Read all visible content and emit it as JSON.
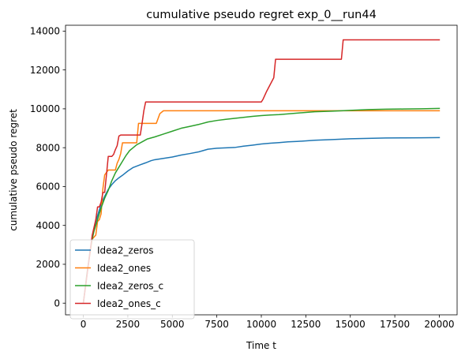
{
  "chart_data": {
    "type": "line",
    "title": "cumulative pseudo regret exp_0__run44",
    "xlabel": "Time t",
    "ylabel": "cumulative pseudo regret",
    "xlim": [
      -1000,
      21000
    ],
    "ylim": [
      -600,
      14300
    ],
    "xticks": [
      0,
      2500,
      5000,
      7500,
      10000,
      12500,
      15000,
      17500,
      20000
    ],
    "yticks": [
      0,
      2000,
      4000,
      6000,
      8000,
      10000,
      12000,
      14000
    ],
    "grid": false,
    "legend_position": "lower left",
    "series": [
      {
        "name": "Idea2_zeros",
        "color": "#1f77b4",
        "x": [
          0,
          100,
          200,
          300,
          400,
          500,
          600,
          700,
          800,
          900,
          1000,
          1200,
          1400,
          1600,
          1800,
          2000,
          2200,
          2500,
          2800,
          3000,
          3200,
          3500,
          3800,
          4000,
          4500,
          5000,
          5500,
          6000,
          6500,
          7000,
          7500,
          8000,
          8500,
          9000,
          9500,
          10000,
          10500,
          11000,
          11500,
          12000,
          13000,
          14000,
          15000,
          16000,
          17000,
          18000,
          19000,
          20000
        ],
        "y": [
          0,
          700,
          1400,
          2100,
          2800,
          3400,
          3800,
          4200,
          4500,
          4800,
          5100,
          5500,
          5850,
          6100,
          6300,
          6450,
          6580,
          6800,
          6980,
          7050,
          7120,
          7220,
          7330,
          7380,
          7450,
          7520,
          7620,
          7700,
          7790,
          7920,
          7970,
          7990,
          8010,
          8080,
          8130,
          8190,
          8230,
          8260,
          8300,
          8320,
          8380,
          8420,
          8460,
          8480,
          8500,
          8505,
          8510,
          8520
        ]
      },
      {
        "name": "Idea2_ones",
        "color": "#ff7f0e",
        "x": [
          0,
          300,
          500,
          600,
          700,
          800,
          900,
          1000,
          1100,
          1200,
          1400,
          1600,
          1800,
          1900,
          2000,
          2100,
          2200,
          2350,
          2500,
          2600,
          2700,
          2800,
          2900,
          3000,
          3100,
          3200,
          3300,
          3400,
          3500,
          3700,
          3800,
          4000,
          4100,
          4300,
          4500,
          5000,
          6000,
          8000,
          10000,
          12000,
          14000,
          16000,
          18000,
          20000
        ],
        "y": [
          0,
          2100,
          3300,
          3400,
          3500,
          4200,
          4300,
          4600,
          5900,
          6600,
          6850,
          6850,
          6850,
          7200,
          7400,
          7700,
          8250,
          8250,
          8250,
          8250,
          8250,
          8250,
          8250,
          8250,
          9250,
          9250,
          9250,
          9250,
          9250,
          9250,
          9250,
          9250,
          9250,
          9750,
          9900,
          9900,
          9900,
          9900,
          9900,
          9900,
          9900,
          9900,
          9900,
          9900
        ]
      },
      {
        "name": "Idea2_zeros_c",
        "color": "#2ca02c",
        "x": [
          0,
          200,
          400,
          500,
          600,
          800,
          1000,
          1200,
          1400,
          1600,
          1800,
          2000,
          2200,
          2400,
          2600,
          2800,
          3000,
          3300,
          3600,
          4000,
          4500,
          5000,
          5500,
          6000,
          6500,
          7000,
          7500,
          8000,
          8500,
          9000,
          9500,
          10000,
          10500,
          11000,
          12000,
          13000,
          14000,
          15000,
          16000,
          17000,
          18000,
          19000,
          20000
        ],
        "y": [
          0,
          1500,
          2800,
          3300,
          3700,
          4300,
          4900,
          5400,
          5800,
          6300,
          6700,
          7000,
          7300,
          7600,
          7850,
          8000,
          8150,
          8300,
          8450,
          8550,
          8700,
          8850,
          9000,
          9100,
          9200,
          9320,
          9400,
          9460,
          9510,
          9560,
          9610,
          9650,
          9680,
          9700,
          9780,
          9850,
          9880,
          9920,
          9960,
          9980,
          9990,
          10000,
          10020
        ]
      },
      {
        "name": "Idea2_ones_c",
        "color": "#d62728",
        "x": [
          0,
          300,
          500,
          700,
          800,
          900,
          1000,
          1100,
          1200,
          1300,
          1400,
          1500,
          1600,
          1700,
          1800,
          1900,
          2000,
          2100,
          2200,
          2400,
          2600,
          2800,
          3000,
          3100,
          3200,
          3300,
          3400,
          3500,
          4000,
          6000,
          8000,
          9500,
          10000,
          10100,
          10300,
          10500,
          10700,
          10800,
          11000,
          12000,
          13000,
          14000,
          14500,
          14600,
          15000,
          16000,
          17000,
          18000,
          19000,
          20000
        ],
        "y": [
          0,
          2100,
          3500,
          4300,
          4950,
          4950,
          5200,
          5700,
          5700,
          6600,
          7550,
          7550,
          7550,
          7650,
          7900,
          8100,
          8600,
          8650,
          8650,
          8650,
          8650,
          8650,
          8650,
          8650,
          8650,
          9250,
          9900,
          10350,
          10350,
          10350,
          10350,
          10350,
          10350,
          10500,
          10900,
          11250,
          11600,
          12550,
          12550,
          12550,
          12550,
          12550,
          12550,
          13550,
          13550,
          13550,
          13550,
          13550,
          13550,
          13550
        ]
      }
    ]
  }
}
